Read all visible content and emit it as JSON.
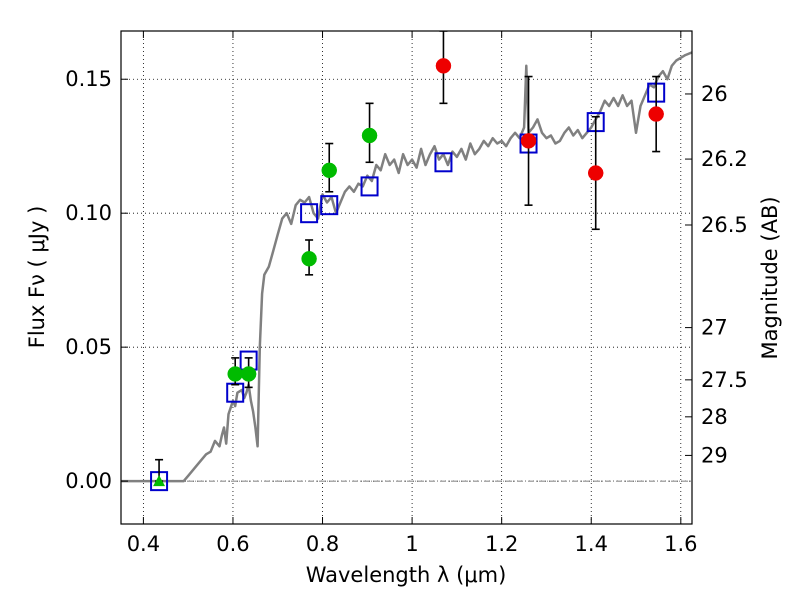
{
  "chart_data": {
    "type": "scatter",
    "title": "",
    "xlabel": "Wavelength  λ (μm)",
    "ylabel": "Flux  Fν  ( μJy )",
    "ylabel_right": "Magnitude (AB)",
    "xlim": [
      0.35,
      1.625
    ],
    "ylim": [
      -0.016,
      0.168
    ],
    "grid": true,
    "x_ticks": [
      0.4,
      0.6,
      0.8,
      1.0,
      1.2,
      1.4,
      1.6
    ],
    "x_tick_labels": [
      "0.4",
      "0.6",
      "0.8",
      "1",
      "1.2",
      "1.4",
      "1.6"
    ],
    "y_ticks": [
      0.0,
      0.05,
      0.1,
      0.15
    ],
    "y_tick_labels": [
      "0.00",
      "0.05",
      "0.10",
      "0.15"
    ],
    "right_axis": {
      "tick_labels": [
        "26",
        "26.2",
        "26.5",
        "27",
        "27.5",
        "28",
        "29"
      ],
      "tick_flux": [
        0.1445,
        0.1202,
        0.0956,
        0.0573,
        0.0378,
        0.024,
        0.0096
      ]
    },
    "reference_line_y": 0.0,
    "colors": {
      "model": "#808080",
      "model_photometry": "#0000cc",
      "green_points": "#00bb00",
      "red_points": "#ee0000",
      "errorbar": "#000000"
    },
    "series": [
      {
        "marker": "line",
        "color": "#808080",
        "points": [
          [
            0.35,
            0.0
          ],
          [
            0.49,
            0.0
          ],
          [
            0.5,
            0.002
          ],
          [
            0.52,
            0.006
          ],
          [
            0.54,
            0.01
          ],
          [
            0.55,
            0.011
          ],
          [
            0.56,
            0.015
          ],
          [
            0.57,
            0.013
          ],
          [
            0.575,
            0.017
          ],
          [
            0.58,
            0.02
          ],
          [
            0.585,
            0.014
          ],
          [
            0.59,
            0.025
          ],
          [
            0.6,
            0.03
          ],
          [
            0.605,
            0.028
          ],
          [
            0.61,
            0.033
          ],
          [
            0.62,
            0.034
          ],
          [
            0.625,
            0.031
          ],
          [
            0.63,
            0.033
          ],
          [
            0.635,
            0.036
          ],
          [
            0.64,
            0.03
          ],
          [
            0.645,
            0.026
          ],
          [
            0.65,
            0.02
          ],
          [
            0.655,
            0.013
          ],
          [
            0.66,
            0.05
          ],
          [
            0.665,
            0.07
          ],
          [
            0.67,
            0.077
          ],
          [
            0.68,
            0.08
          ],
          [
            0.69,
            0.086
          ],
          [
            0.7,
            0.092
          ],
          [
            0.71,
            0.098
          ],
          [
            0.72,
            0.1
          ],
          [
            0.73,
            0.096
          ],
          [
            0.74,
            0.103
          ],
          [
            0.75,
            0.105
          ],
          [
            0.76,
            0.104
          ],
          [
            0.77,
            0.106
          ],
          [
            0.78,
            0.1
          ],
          [
            0.79,
            0.098
          ],
          [
            0.8,
            0.107
          ],
          [
            0.81,
            0.104
          ],
          [
            0.82,
            0.106
          ],
          [
            0.83,
            0.1
          ],
          [
            0.84,
            0.104
          ],
          [
            0.85,
            0.108
          ],
          [
            0.86,
            0.11
          ],
          [
            0.87,
            0.108
          ],
          [
            0.88,
            0.111
          ],
          [
            0.89,
            0.11
          ],
          [
            0.9,
            0.114
          ],
          [
            0.91,
            0.112
          ],
          [
            0.92,
            0.118
          ],
          [
            0.93,
            0.116
          ],
          [
            0.94,
            0.122
          ],
          [
            0.95,
            0.118
          ],
          [
            0.96,
            0.12
          ],
          [
            0.97,
            0.115
          ],
          [
            0.98,
            0.122
          ],
          [
            0.99,
            0.118
          ],
          [
            1.0,
            0.12
          ],
          [
            1.01,
            0.117
          ],
          [
            1.02,
            0.124
          ],
          [
            1.03,
            0.118
          ],
          [
            1.04,
            0.122
          ],
          [
            1.05,
            0.125
          ],
          [
            1.06,
            0.12
          ],
          [
            1.07,
            0.122
          ],
          [
            1.08,
            0.118
          ],
          [
            1.09,
            0.123
          ],
          [
            1.1,
            0.121
          ],
          [
            1.11,
            0.124
          ],
          [
            1.12,
            0.12
          ],
          [
            1.13,
            0.126
          ],
          [
            1.14,
            0.122
          ],
          [
            1.15,
            0.124
          ],
          [
            1.16,
            0.127
          ],
          [
            1.17,
            0.125
          ],
          [
            1.18,
            0.128
          ],
          [
            1.19,
            0.126
          ],
          [
            1.2,
            0.127
          ],
          [
            1.21,
            0.125
          ],
          [
            1.22,
            0.128
          ],
          [
            1.23,
            0.13
          ],
          [
            1.24,
            0.128
          ],
          [
            1.25,
            0.132
          ],
          [
            1.255,
            0.155
          ],
          [
            1.26,
            0.13
          ],
          [
            1.27,
            0.132
          ],
          [
            1.28,
            0.135
          ],
          [
            1.29,
            0.13
          ],
          [
            1.3,
            0.128
          ],
          [
            1.31,
            0.129
          ],
          [
            1.32,
            0.126
          ],
          [
            1.33,
            0.127
          ],
          [
            1.34,
            0.13
          ],
          [
            1.35,
            0.132
          ],
          [
            1.36,
            0.129
          ],
          [
            1.37,
            0.131
          ],
          [
            1.38,
            0.128
          ],
          [
            1.39,
            0.13
          ],
          [
            1.4,
            0.132
          ],
          [
            1.41,
            0.135
          ],
          [
            1.42,
            0.138
          ],
          [
            1.43,
            0.142
          ],
          [
            1.44,
            0.14
          ],
          [
            1.45,
            0.143
          ],
          [
            1.46,
            0.14
          ],
          [
            1.47,
            0.144
          ],
          [
            1.48,
            0.14
          ],
          [
            1.49,
            0.142
          ],
          [
            1.5,
            0.13
          ],
          [
            1.51,
            0.14
          ],
          [
            1.52,
            0.144
          ],
          [
            1.53,
            0.148
          ],
          [
            1.54,
            0.147
          ],
          [
            1.55,
            0.151
          ],
          [
            1.56,
            0.153
          ],
          [
            1.57,
            0.15
          ],
          [
            1.58,
            0.155
          ],
          [
            1.59,
            0.157
          ],
          [
            1.6,
            0.158
          ],
          [
            1.61,
            0.159
          ],
          [
            1.625,
            0.16
          ]
        ]
      },
      {
        "marker": "open-square",
        "color": "#0000cc",
        "x": [
          0.435,
          0.605,
          0.635,
          0.77,
          0.815,
          0.905,
          1.07,
          1.26,
          1.41,
          1.545
        ],
        "y": [
          0.0,
          0.033,
          0.045,
          0.1,
          0.103,
          0.11,
          0.119,
          0.126,
          0.134,
          0.145
        ]
      },
      {
        "marker": "filled-circle",
        "color": "#00bb00",
        "x": [
          0.605,
          0.635,
          0.77,
          0.815,
          0.905
        ],
        "y": [
          0.04,
          0.04,
          0.083,
          0.116,
          0.129
        ],
        "yerr_low": [
          0.036,
          0.035,
          0.077,
          0.108,
          0.119
        ],
        "yerr_high": [
          0.046,
          0.046,
          0.09,
          0.126,
          0.141
        ]
      },
      {
        "marker": "filled-triangle",
        "color": "#00bb00",
        "x": [
          0.435
        ],
        "y": [
          0.0
        ],
        "yerr_low": [
          0.0
        ],
        "yerr_high": [
          0.008
        ]
      },
      {
        "marker": "filled-circle",
        "color": "#ee0000",
        "x": [
          1.07,
          1.26,
          1.41,
          1.545
        ],
        "y": [
          0.155,
          0.127,
          0.115,
          0.137
        ],
        "yerr_low": [
          0.141,
          0.103,
          0.094,
          0.123
        ],
        "yerr_high": [
          0.168,
          0.151,
          0.136,
          0.151
        ]
      }
    ]
  }
}
